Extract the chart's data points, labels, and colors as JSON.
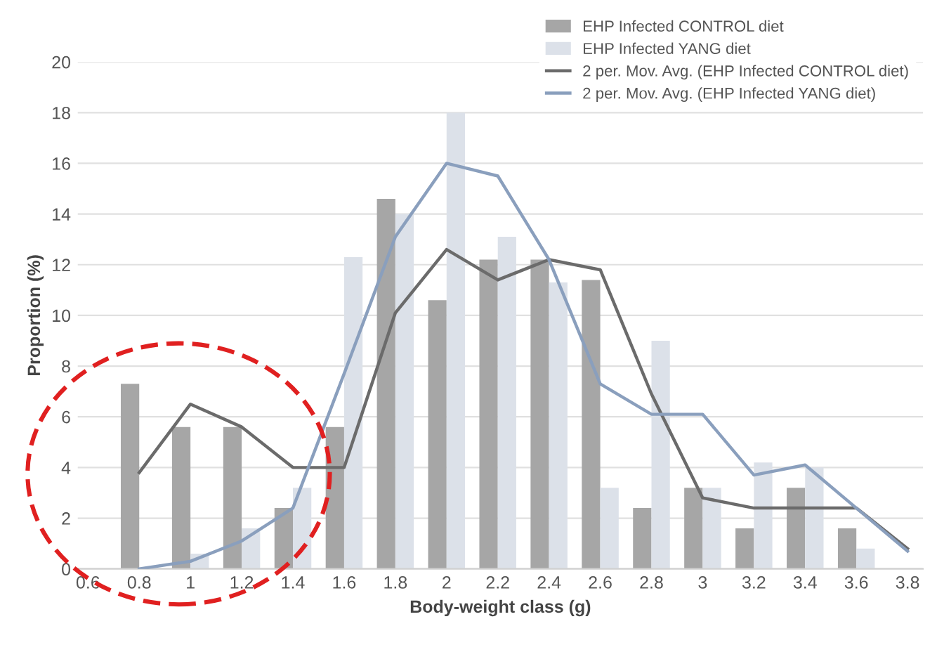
{
  "chart_data": {
    "type": "bar",
    "xlabel": "Body-weight class (g)",
    "ylabel": "Proportion (%)",
    "categories": [
      "0.6",
      "0.8",
      "1",
      "1.2",
      "1.4",
      "1.6",
      "1.8",
      "2",
      "2.2",
      "2.4",
      "2.6",
      "2.8",
      "3",
      "3.2",
      "3.4",
      "3.6",
      "3.8"
    ],
    "series": [
      {
        "name": "EHP Infected CONTROL diet",
        "color": "#a6a6a6",
        "values": [
          0,
          7.3,
          5.6,
          5.6,
          2.4,
          5.6,
          14.6,
          10.6,
          12.2,
          12.2,
          11.4,
          2.4,
          3.2,
          1.6,
          3.2,
          1.6,
          0
        ]
      },
      {
        "name": "EHP Infected YANG diet",
        "color": "#dce1e9",
        "values": [
          0,
          0,
          0.6,
          1.6,
          3.2,
          12.3,
          14,
          18,
          13.1,
          11.3,
          3.2,
          9,
          3.2,
          4.2,
          4,
          0.8,
          0
        ]
      },
      {
        "name": "2 per. Mov. Avg. (EHP Infected CONTROL diet)",
        "color": "#6b6b6b",
        "type": "line",
        "values": [
          null,
          3.8,
          6.5,
          5.6,
          4,
          4,
          10.1,
          12.6,
          11.4,
          12.2,
          11.8,
          6.9,
          2.8,
          2.4,
          2.4,
          2.4,
          0.8
        ]
      },
      {
        "name": "2 per. Mov. Avg. (EHP Infected YANG diet)",
        "color": "#8a9fbd",
        "type": "line",
        "values": [
          null,
          0,
          0.3,
          1.1,
          2.4,
          7.7,
          13.1,
          16,
          15.5,
          12.2,
          7.3,
          6.1,
          6.1,
          3.7,
          4.1,
          2.4,
          0.7
        ]
      }
    ],
    "ylim": [
      0,
      20
    ],
    "yticks": [
      0,
      2,
      4,
      6,
      8,
      10,
      12,
      14,
      16,
      18,
      20
    ],
    "grid": "y",
    "legend": "top right",
    "marker": "none",
    "line_style": "solid"
  }
}
